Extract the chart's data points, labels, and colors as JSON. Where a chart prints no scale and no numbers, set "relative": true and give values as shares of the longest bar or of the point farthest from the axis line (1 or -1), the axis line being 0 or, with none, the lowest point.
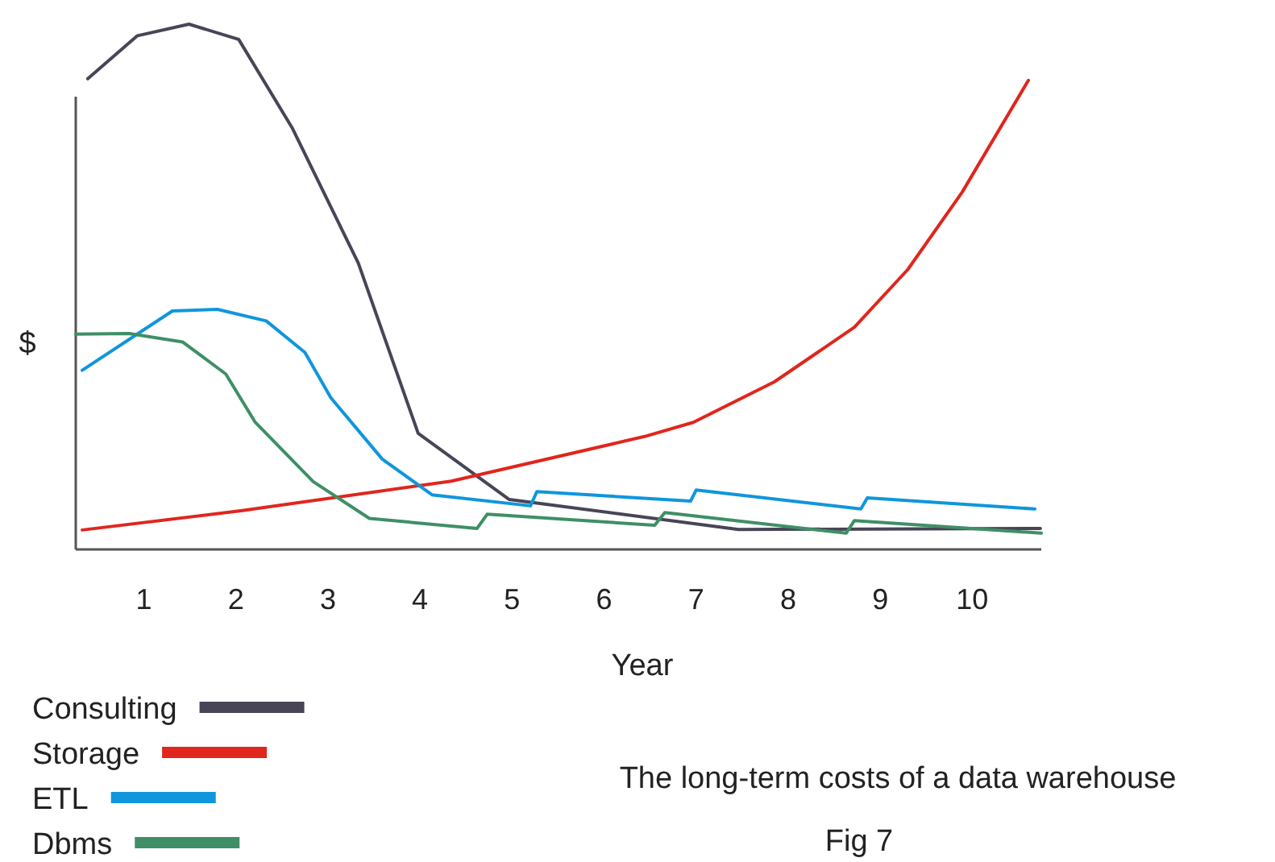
{
  "chart_data": {
    "type": "line",
    "relative": true,
    "xlabel": "Year",
    "ylabel": "$",
    "xlim": [
      0.26,
      10.75
    ],
    "xticks": [
      1,
      2,
      3,
      4,
      5,
      6,
      7,
      8,
      9,
      10
    ],
    "grid": false,
    "legend": "bottom left",
    "marker": "none",
    "line_style": "solid",
    "annotations": [
      "The long-term costs of a data warehouse",
      "Fig 7"
    ],
    "series": [
      {
        "name": "Consulting",
        "color": "#474556",
        "x": [
          0.39,
          0.93,
          1.49,
          2.03,
          2.61,
          3.33,
          3.98,
          4.97,
          7.46,
          10.74
        ],
        "values": [
          0.896,
          0.978,
          1.0,
          0.971,
          0.803,
          0.545,
          0.221,
          0.095,
          0.038,
          0.04
        ]
      },
      {
        "name": "Storage",
        "color": "#e0261d",
        "x": [
          0.33,
          2.07,
          4.34,
          6.44,
          6.97,
          7.85,
          8.72,
          9.3,
          9.89,
          10.61
        ],
        "values": [
          0.037,
          0.074,
          0.13,
          0.215,
          0.242,
          0.319,
          0.423,
          0.533,
          0.68,
          0.893
        ]
      },
      {
        "name": "ETL",
        "color": "#0f96dc",
        "x": [
          0.33,
          1.31,
          1.8,
          2.33,
          2.75,
          3.03,
          3.59,
          4.13,
          5.2,
          5.27,
          6.94,
          7.0,
          8.79,
          8.86,
          10.68
        ],
        "values": [
          0.341,
          0.454,
          0.457,
          0.435,
          0.375,
          0.289,
          0.172,
          0.104,
          0.083,
          0.11,
          0.092,
          0.113,
          0.077,
          0.098,
          0.077
        ]
      },
      {
        "name": "Dbms",
        "color": "#3f8f66",
        "x": [
          0.26,
          0.84,
          1.42,
          1.89,
          2.21,
          2.84,
          3.45,
          4.62,
          4.73,
          6.55,
          6.66,
          8.63,
          8.72,
          10.75
        ],
        "values": [
          0.41,
          0.411,
          0.395,
          0.334,
          0.242,
          0.129,
          0.059,
          0.04,
          0.067,
          0.046,
          0.07,
          0.031,
          0.055,
          0.031
        ]
      }
    ]
  }
}
